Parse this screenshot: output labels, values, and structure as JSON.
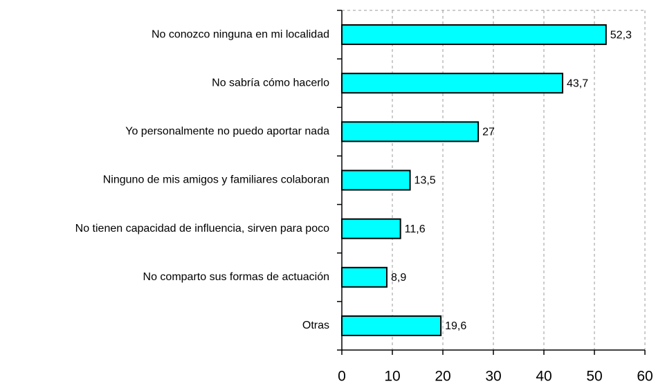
{
  "chart_data": {
    "type": "bar",
    "orientation": "horizontal",
    "categories": [
      "No conozco ninguna en mi localidad",
      "No sabría cómo hacerlo",
      "Yo personalmente no puedo aportar nada",
      "Ninguno de mis amigos y familiares colaboran",
      "No tienen capacidad de influencia, sirven para poco",
      "No comparto sus formas de actuación",
      "Otras"
    ],
    "values": [
      52.3,
      43.7,
      27,
      13.5,
      11.6,
      8.9,
      19.6
    ],
    "value_labels": [
      "52,3",
      "43,7",
      "27",
      "13,5",
      "11,6",
      "8,9",
      "19,6"
    ],
    "color": "#00ffff",
    "xlim": [
      0,
      60
    ],
    "xticks": [
      0,
      10,
      20,
      30,
      40,
      50,
      60
    ],
    "grid": true
  }
}
